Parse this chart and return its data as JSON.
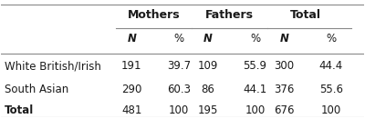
{
  "col_groups": [
    "Mothers",
    "Fathers",
    "Total"
  ],
  "col_headers": [
    "N",
    "%",
    "N",
    "%",
    "N",
    "%"
  ],
  "row_labels": [
    "White British/Irish",
    "South Asian",
    "Total"
  ],
  "table_data": [
    [
      "191",
      "39.7",
      "109",
      "55.9",
      "300",
      "44.4"
    ],
    [
      "290",
      "60.3",
      "86",
      "44.1",
      "376",
      "55.6"
    ],
    [
      "481",
      "100",
      "195",
      "100",
      "676",
      "100"
    ]
  ],
  "bg_color": "#ffffff",
  "text_color": "#1a1a1a",
  "header_group_bold": true,
  "col_header_italic_bold": true,
  "font_size": 8.5,
  "header_font_size": 9.0
}
